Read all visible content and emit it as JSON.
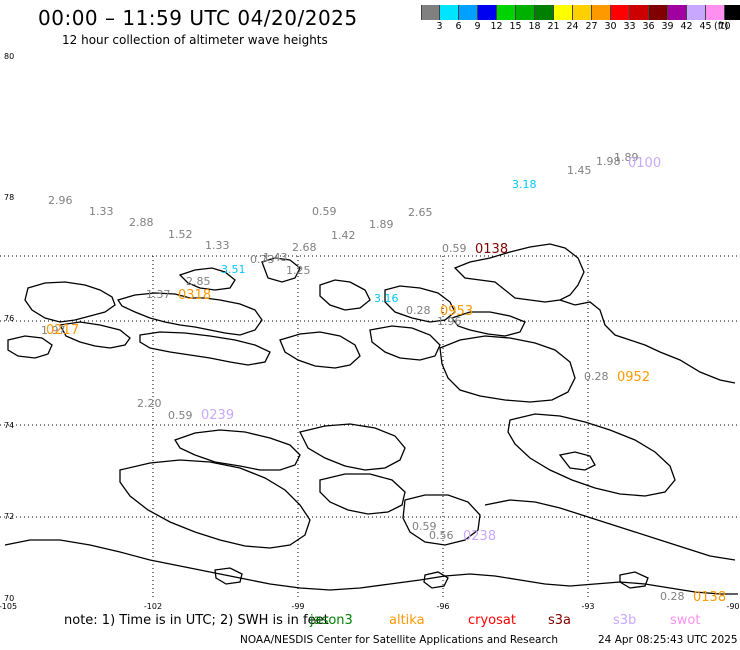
{
  "header": {
    "title": "00:00 – 11:59 UTC 04/20/2025",
    "subtitle": "12 hour collection of altimeter wave heights"
  },
  "colorbar": {
    "unit": "(ft)",
    "bins": [
      {
        "label": "3",
        "color": "#808080"
      },
      {
        "label": "6",
        "color": "#00e5ff"
      },
      {
        "label": "9",
        "color": "#00a0ff"
      },
      {
        "label": "12",
        "color": "#0000f0"
      },
      {
        "label": "15",
        "color": "#00d400"
      },
      {
        "label": "18",
        "color": "#00b000"
      },
      {
        "label": "21",
        "color": "#008000"
      },
      {
        "label": "24",
        "color": "#ffff00"
      },
      {
        "label": "27",
        "color": "#ffd000"
      },
      {
        "label": "30",
        "color": "#ff9900"
      },
      {
        "label": "33",
        "color": "#ff0000"
      },
      {
        "label": "36",
        "color": "#cc0000"
      },
      {
        "label": "39",
        "color": "#800000"
      },
      {
        "label": "42",
        "color": "#a000a0"
      },
      {
        "label": "45",
        "color": "#c8a8ff"
      },
      {
        "label": "70",
        "color": "#ff90f0"
      },
      {
        "label": "",
        "color": "#000000"
      }
    ]
  },
  "map": {
    "lat_labels": [
      "80",
      "78",
      "76",
      "74",
      "72",
      "70"
    ],
    "lon_labels": [
      "-105",
      "-102",
      "-99",
      "-96",
      "-93",
      "-90"
    ],
    "observations": [
      {
        "text": "2.96",
        "color": "#808080"
      },
      {
        "text": "1.33",
        "color": "#808080"
      },
      {
        "text": "2.88",
        "color": "#808080"
      },
      {
        "text": "1.52",
        "color": "#808080"
      },
      {
        "text": "1.33",
        "color": "#808080"
      },
      {
        "text": "0.59",
        "color": "#808080"
      },
      {
        "text": "1.89",
        "color": "#808080"
      },
      {
        "text": "2.65",
        "color": "#808080"
      },
      {
        "text": "1.42",
        "color": "#808080"
      },
      {
        "text": "2.68",
        "color": "#808080"
      },
      {
        "text": "0.73",
        "color": "#808080"
      },
      {
        "text": "1.43",
        "color": "#808080"
      },
      {
        "text": "1.25",
        "color": "#808080"
      },
      {
        "text": "3.51",
        "color": "#00c8ff"
      },
      {
        "text": "2.85",
        "color": "#808080"
      },
      {
        "text": "1.37",
        "color": "#808080"
      },
      {
        "text": "1.97",
        "color": "#808080"
      },
      {
        "text": "3.16",
        "color": "#00c8ff"
      },
      {
        "text": "0.28",
        "color": "#808080"
      },
      {
        "text": "1.96",
        "color": "#808080"
      },
      {
        "text": "0.59",
        "color": "#808080"
      },
      {
        "text": "1.45",
        "color": "#808080"
      },
      {
        "text": "1.98",
        "color": "#808080"
      },
      {
        "text": "1.89",
        "color": "#808080"
      },
      {
        "text": "3.18",
        "color": "#00c8ff"
      },
      {
        "text": "0.28",
        "color": "#808080"
      },
      {
        "text": "2.20",
        "color": "#808080"
      },
      {
        "text": "0.59",
        "color": "#808080"
      },
      {
        "text": "0.59",
        "color": "#808080"
      },
      {
        "text": "0.56",
        "color": "#808080"
      },
      {
        "text": "0.28",
        "color": "#808080"
      }
    ],
    "pass_times": [
      {
        "text": "0138",
        "color": "#800000"
      },
      {
        "text": "0318",
        "color": "#ff9900"
      },
      {
        "text": "0217",
        "color": "#ff9900"
      },
      {
        "text": "0953",
        "color": "#ff9900"
      },
      {
        "text": "0952",
        "color": "#ff9900"
      },
      {
        "text": "0100",
        "color": "#c8a8ff"
      },
      {
        "text": "0239",
        "color": "#c8a8ff"
      },
      {
        "text": "0238",
        "color": "#c8a8ff"
      },
      {
        "text": "0138",
        "color": "#ff9900"
      }
    ]
  },
  "note": {
    "prefix": "note: 1) Time is in UTC; 2) SWH is in feet",
    "satellites": [
      {
        "name": "jason3",
        "color": "#008000"
      },
      {
        "name": "altika",
        "color": "#ff9900"
      },
      {
        "name": "cryosat",
        "color": "#ff0000"
      },
      {
        "name": "s3a",
        "color": "#800000"
      },
      {
        "name": "s3b",
        "color": "#c8a8ff"
      },
      {
        "name": "swot",
        "color": "#ff90f0"
      }
    ]
  },
  "footer": {
    "credit": "NOAA/NESDIS Center for Satellite Applications and Research",
    "timestamp": "24 Apr 08:25:43 UTC 2025"
  }
}
